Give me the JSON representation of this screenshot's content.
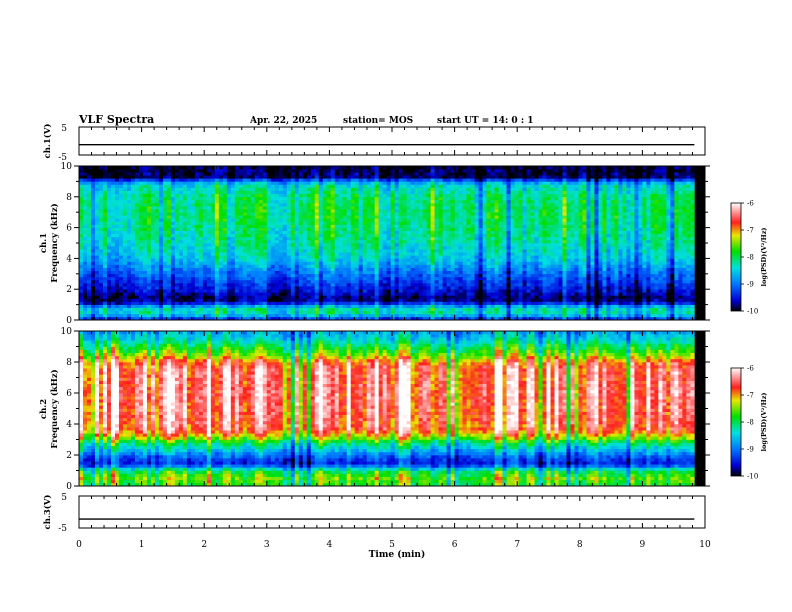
{
  "header": {
    "title": "VLF Spectra",
    "date": "Apr. 22, 2025",
    "station": "station= MOS",
    "start": "start UT =   14: 0  : 1"
  },
  "chart_data": {
    "type": "heatmap",
    "x_axis": {
      "label": "Time (min)",
      "range": [
        0,
        10
      ],
      "ticks": [
        "0",
        "1",
        "2",
        "3",
        "4",
        "5",
        "6",
        "7",
        "8",
        "9",
        "10"
      ],
      "data_end": 9.83
    },
    "panels": [
      {
        "id": "ch1-wave",
        "ylabel": "ch.1(V)",
        "ylim": [
          -5,
          5
        ],
        "ticks": [
          "5",
          "-5"
        ],
        "trace_level": -1.3
      },
      {
        "id": "ch1-spec",
        "ylabel_top": "ch.1",
        "ylabel": "Frequency (kHz)",
        "ylim": [
          0,
          10
        ],
        "ticks": [
          "0",
          "2",
          "4",
          "6",
          "8",
          "10"
        ],
        "profile": [
          [
            0.0,
            0.1
          ],
          [
            0.25,
            0.3
          ],
          [
            0.6,
            0.45
          ],
          [
            0.9,
            0.3
          ],
          [
            1.2,
            0.06
          ],
          [
            1.5,
            0.05
          ],
          [
            2.0,
            0.12
          ],
          [
            3.0,
            0.22
          ],
          [
            4.0,
            0.36
          ],
          [
            5.0,
            0.42
          ],
          [
            6.0,
            0.46
          ],
          [
            7.0,
            0.48
          ],
          [
            8.0,
            0.46
          ],
          [
            8.8,
            0.38
          ],
          [
            9.1,
            0.18
          ],
          [
            9.3,
            0.04
          ],
          [
            10.0,
            0.02
          ]
        ],
        "colorbar": {
          "label": "log(PSD)(V²/Hz)",
          "ticks": [
            "-6",
            "-7",
            "-8",
            "-9",
            "-10"
          ],
          "range": [
            -10,
            -6
          ]
        }
      },
      {
        "id": "ch2-spec",
        "ylabel_top": "ch.2",
        "ylabel": "Frequency (kHz)",
        "ylim": [
          0,
          10
        ],
        "ticks": [
          "0",
          "2",
          "4",
          "6",
          "8",
          "10"
        ],
        "profile": [
          [
            0.0,
            0.55
          ],
          [
            0.5,
            0.62
          ],
          [
            1.0,
            0.5
          ],
          [
            1.4,
            0.15
          ],
          [
            1.8,
            0.2
          ],
          [
            2.3,
            0.35
          ],
          [
            2.8,
            0.5
          ],
          [
            3.2,
            0.7
          ],
          [
            3.6,
            0.84
          ],
          [
            4.5,
            0.88
          ],
          [
            6.0,
            0.9
          ],
          [
            7.5,
            0.88
          ],
          [
            8.0,
            0.82
          ],
          [
            8.4,
            0.66
          ],
          [
            9.0,
            0.52
          ],
          [
            9.5,
            0.4
          ],
          [
            10.0,
            0.32
          ]
        ],
        "colorbar": {
          "label": "log(PSD)(V²/Hz)",
          "ticks": [
            "-6",
            "-7",
            "-8",
            "-9",
            "-10"
          ],
          "range": [
            -10,
            -6
          ]
        }
      },
      {
        "id": "ch3-wave",
        "ylabel": "ch.3(V)",
        "ylim": [
          -5,
          5
        ],
        "ticks": [
          "5",
          "-5"
        ],
        "trace_level": -2.2
      }
    ]
  }
}
